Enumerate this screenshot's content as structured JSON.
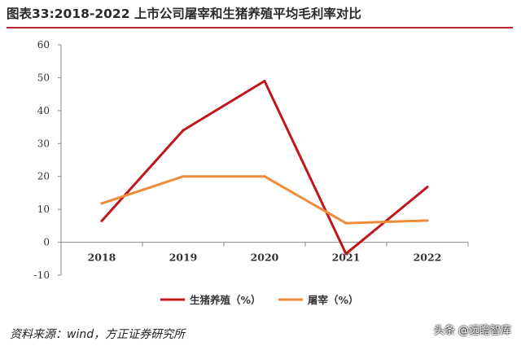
{
  "title": "图表33:2018-2022 上市公司屠宰和生猪养殖平均毛利率对比",
  "chart_data": {
    "type": "line",
    "categories": [
      "2018",
      "2019",
      "2020",
      "2021",
      "2022"
    ],
    "series": [
      {
        "name": "生猪养殖（%）",
        "color": "#c0171d",
        "values": [
          6.5,
          34,
          49,
          -3.5,
          16.8
        ]
      },
      {
        "name": "屠宰（%）",
        "color": "#ef8c3a",
        "values": [
          11.8,
          20,
          20,
          5.8,
          6.6
        ]
      }
    ],
    "yticks": [
      "60",
      "50",
      "40",
      "30",
      "20",
      "10",
      "0",
      "-10"
    ],
    "ylim": [
      -10,
      60
    ],
    "grid": false,
    "legend_position": "bottom"
  },
  "source": "资料来源：wind，方正证券研究所",
  "watermark": "头条 @远瞻智库"
}
